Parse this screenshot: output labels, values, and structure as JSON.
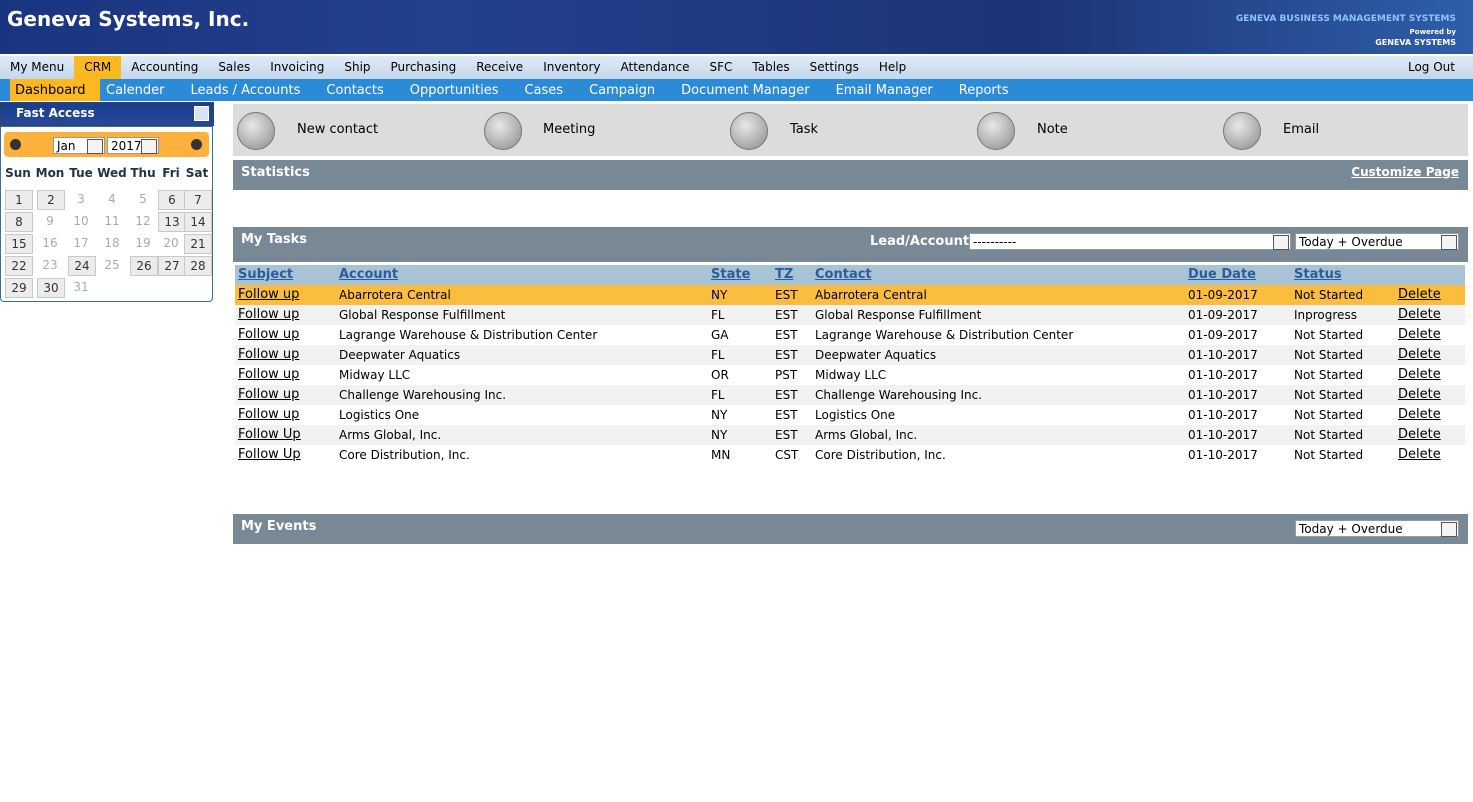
{
  "header": {
    "title": "Geneva Systems, Inc.",
    "brand": "GENEVA BUSINESS MANAGEMENT SYSTEMS",
    "powered": "Powered by",
    "company": "GENEVA SYSTEMS"
  },
  "menu": {
    "items": [
      "My Menu",
      "CRM",
      "Accounting",
      "Sales",
      "Invoicing",
      "Ship",
      "Purchasing",
      "Receive",
      "Inventory",
      "Attendance",
      "SFC",
      "Tables",
      "Settings",
      "Help"
    ],
    "selected": 1,
    "logout": "Log Out"
  },
  "submenu": {
    "items": [
      "Dashboard",
      "Calender",
      "Leads / Accounts",
      "Contacts",
      "Opportunities",
      "Cases",
      "Campaign",
      "Document Manager",
      "Email Manager",
      "Reports"
    ],
    "selected": 0
  },
  "sidebar": {
    "title": "Fast Access",
    "month": "Jan",
    "year": "2017",
    "weekdays": [
      "Sun",
      "Mon",
      "Tue",
      "Wed",
      "Thu",
      "Fri",
      "Sat"
    ],
    "weeks": [
      [
        {
          "day": 1,
          "style": "box"
        },
        {
          "day": 2,
          "style": "box"
        },
        {
          "day": 3,
          "style": "muted"
        },
        {
          "day": 4,
          "style": "muted"
        },
        {
          "day": 5,
          "style": "muted"
        },
        {
          "day": 6,
          "style": "box"
        },
        {
          "day": 7,
          "style": "box"
        }
      ],
      [
        {
          "day": 8,
          "style": "box"
        },
        {
          "day": 9,
          "style": "muted"
        },
        {
          "day": 10,
          "style": "muted"
        },
        {
          "day": 11,
          "style": "muted"
        },
        {
          "day": 12,
          "style": "muted"
        },
        {
          "day": 13,
          "style": "box"
        },
        {
          "day": 14,
          "style": "box"
        }
      ],
      [
        {
          "day": 15,
          "style": "box"
        },
        {
          "day": 16,
          "style": "muted"
        },
        {
          "day": 17,
          "style": "muted"
        },
        {
          "day": 18,
          "style": "muted"
        },
        {
          "day": 19,
          "style": "muted"
        },
        {
          "day": 20,
          "style": "muted"
        },
        {
          "day": 21,
          "style": "box"
        }
      ],
      [
        {
          "day": 22,
          "style": "box"
        },
        {
          "day": 23,
          "style": "muted"
        },
        {
          "day": 24,
          "style": "box"
        },
        {
          "day": 25,
          "style": "muted"
        },
        {
          "day": 26,
          "style": "box"
        },
        {
          "day": 27,
          "style": "box"
        },
        {
          "day": 28,
          "style": "box"
        }
      ],
      [
        {
          "day": 29,
          "style": "box"
        },
        {
          "day": 30,
          "style": "box"
        },
        {
          "day": 31,
          "style": "muted"
        }
      ]
    ]
  },
  "quick_actions": [
    "New contact",
    "Meeting",
    "Task",
    "Note",
    "Email"
  ],
  "statistics": {
    "title": "Statistics",
    "link": "Customize Page"
  },
  "tasks": {
    "title": "My Tasks",
    "filter_label": "Lead/Account",
    "filter_value": "----------",
    "range": "Today + Overdue",
    "columns": [
      "Subject",
      "Account",
      "State",
      "TZ",
      "Contact",
      "Due Date",
      "Status"
    ],
    "selected_row": 0,
    "rows": [
      [
        "Follow up",
        "Abarrotera Central",
        "NY",
        "EST",
        "Abarrotera Central",
        "01-09-2017",
        "Not Started",
        "Delete"
      ],
      [
        "Follow up",
        "Global Response Fulfillment",
        "FL",
        "EST",
        "Global Response Fulfillment",
        "01-09-2017",
        "Inprogress",
        "Delete"
      ],
      [
        "Follow up",
        "Lagrange Warehouse & Distribution Center",
        "GA",
        "EST",
        "Lagrange Warehouse & Distribution Center",
        "01-09-2017",
        "Not Started",
        "Delete"
      ],
      [
        "Follow up",
        "Deepwater Aquatics",
        "FL",
        "EST",
        "Deepwater Aquatics",
        "01-10-2017",
        "Not Started",
        "Delete"
      ],
      [
        "Follow up",
        "Midway LLC",
        "OR",
        "PST",
        "Midway LLC",
        "01-10-2017",
        "Not Started",
        "Delete"
      ],
      [
        "Follow up",
        "Challenge Warehousing Inc.",
        "FL",
        "EST",
        "Challenge Warehousing Inc.",
        "01-10-2017",
        "Not Started",
        "Delete"
      ],
      [
        "Follow up",
        "Logistics One",
        "NY",
        "EST",
        "Logistics One",
        "01-10-2017",
        "Not Started",
        "Delete"
      ],
      [
        "Follow Up",
        "Arms Global, Inc.",
        "NY",
        "EST",
        "Arms Global, Inc.",
        "01-10-2017",
        "Not Started",
        "Delete"
      ],
      [
        "Follow Up",
        "Core Distribution, Inc.",
        "MN",
        "CST",
        "Core Distribution, Inc.",
        "01-10-2017",
        "Not Started",
        "Delete"
      ]
    ]
  },
  "events": {
    "title": "My Events",
    "range": "Today + Overdue"
  }
}
